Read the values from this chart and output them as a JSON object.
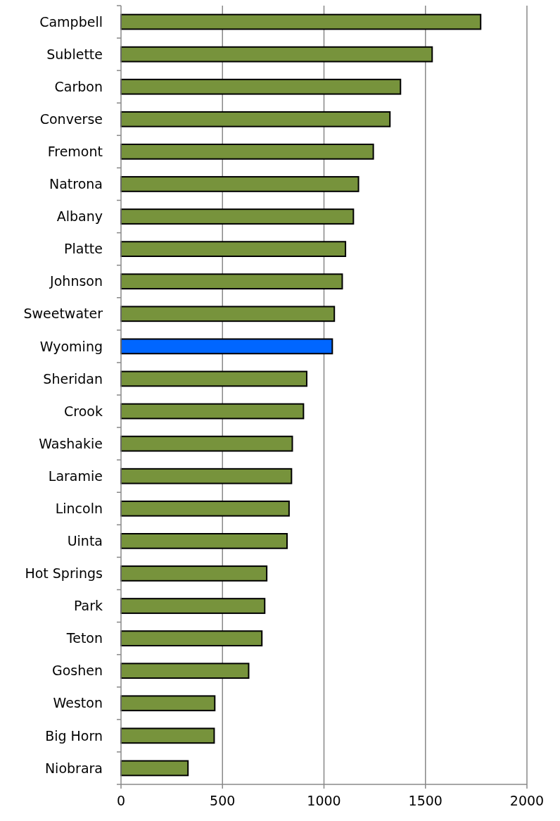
{
  "chart_data": {
    "type": "bar",
    "orientation": "horizontal",
    "categories": [
      "Campbell",
      "Sublette",
      "Carbon",
      "Converse",
      "Fremont",
      "Natrona",
      "Albany",
      "Platte",
      "Johnson",
      "Sweetwater",
      "Wyoming",
      "Sheridan",
      "Crook",
      "Washakie",
      "Laramie",
      "Lincoln",
      "Uinta",
      "Hot Springs",
      "Park",
      "Teton",
      "Goshen",
      "Weston",
      "Big Horn",
      "Niobrara"
    ],
    "values": [
      1772,
      1533,
      1377,
      1325,
      1243,
      1170,
      1145,
      1106,
      1090,
      1051,
      1041,
      915,
      899,
      844,
      840,
      828,
      818,
      718,
      708,
      694,
      629,
      462,
      459,
      330
    ],
    "colors": [
      "#77933c",
      "#77933c",
      "#77933c",
      "#77933c",
      "#77933c",
      "#77933c",
      "#77933c",
      "#77933c",
      "#77933c",
      "#77933c",
      "#0066ff",
      "#77933c",
      "#77933c",
      "#77933c",
      "#77933c",
      "#77933c",
      "#77933c",
      "#77933c",
      "#77933c",
      "#77933c",
      "#77933c",
      "#77933c",
      "#77933c",
      "#77933c"
    ],
    "xlim": [
      0,
      2000
    ],
    "xticks": [
      0,
      500,
      1000,
      1500,
      2000
    ],
    "grid": "x"
  }
}
